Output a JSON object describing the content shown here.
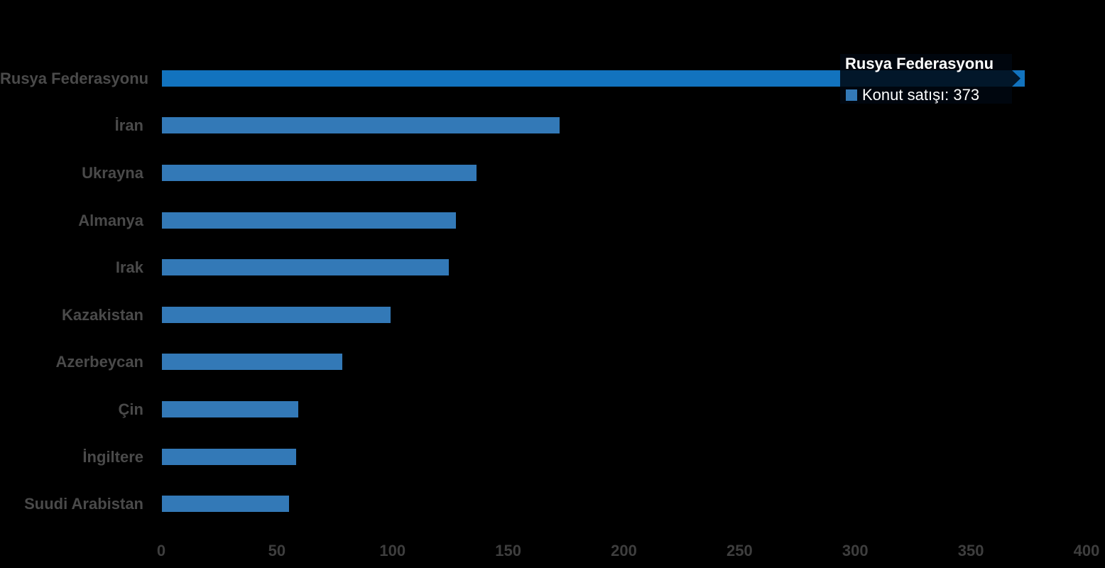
{
  "background_color": "#000000",
  "chart_data": {
    "type": "bar",
    "orientation": "horizontal",
    "title": "",
    "xlabel": "",
    "ylabel": "",
    "categories": [
      "Rusya Federasyonu",
      "İran",
      "Ukrayna",
      "Almanya",
      "Irak",
      "Kazakistan",
      "Azerbeycan",
      "Çin",
      "İngiltere",
      "Suudi Arabistan"
    ],
    "series": [
      {
        "name": "Konut satışı",
        "values": [
          373,
          172,
          136,
          127,
          124,
          99,
          78,
          59,
          58,
          55
        ]
      }
    ],
    "xlim": [
      0,
      400
    ],
    "x_ticks": [
      0,
      50,
      100,
      150,
      200,
      250,
      300,
      350,
      400
    ],
    "grid": false,
    "legend": "none",
    "bar_color": "#3379B7",
    "highlight_bar_color": "#1273BE",
    "highlighted_index": 0,
    "category_label_color": "#4a4a4a",
    "tick_label_color": "#3e3e3e"
  },
  "tooltip": {
    "title": "Rusya Federasyonu",
    "series_label": "Konut satışı",
    "value": "373",
    "text": "Konut satışı: 373",
    "marker_color": "#3379B7",
    "text_color": "#ffffff"
  }
}
